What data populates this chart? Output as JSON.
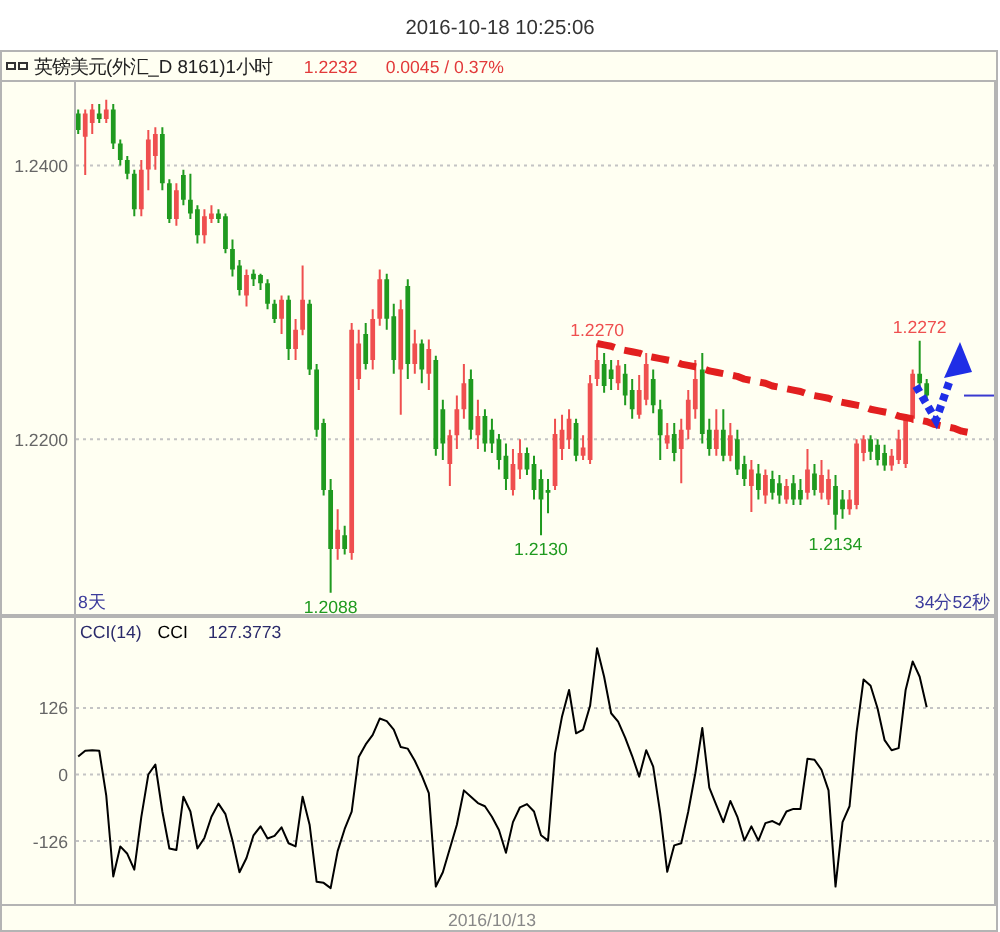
{
  "chart_data": [
    {
      "type": "candlestick",
      "title": "2016-10-18 10:25:06",
      "subtitle": "英镑美元(外汇_D 8161)1小时",
      "annotations": [
        "1.2232",
        "0.0045 / 0.37%",
        "8天",
        "34分52秒",
        {
          "text": "1.2270",
          "y": 1.227
        },
        {
          "text": "1.2130",
          "y": 1.213
        },
        {
          "text": "1.2088",
          "y": 1.2088
        },
        {
          "text": "1.2134",
          "y": 1.2134
        },
        {
          "text": "1.2272",
          "y": 1.2272
        }
      ],
      "categories": [
        null,
        null,
        null,
        null,
        null,
        null,
        null,
        null,
        null,
        null,
        null,
        null,
        null,
        null,
        null,
        null,
        null,
        null,
        null,
        null,
        null,
        null,
        null,
        null,
        null,
        null,
        null,
        null,
        null,
        null,
        null,
        null,
        null,
        null,
        null,
        null,
        null,
        null,
        null,
        null,
        null,
        null,
        null,
        null,
        null,
        null,
        null,
        null,
        null,
        null,
        null,
        null,
        null,
        null,
        null,
        null,
        null,
        null,
        null,
        null,
        null,
        null,
        null,
        null,
        null,
        null,
        null,
        null,
        null,
        null,
        null,
        null,
        null,
        null,
        null,
        null,
        null,
        null,
        null,
        null,
        null,
        null,
        null,
        null,
        null,
        null,
        null,
        null,
        null,
        null,
        null,
        null,
        null,
        null,
        null,
        null,
        null,
        null,
        null,
        null,
        null,
        null,
        null,
        null,
        null,
        null,
        null,
        null,
        null,
        null,
        null,
        null,
        null,
        null,
        null,
        null,
        null,
        null,
        null,
        null,
        null,
        null,
        null,
        null,
        null,
        null,
        null,
        null,
        null
      ],
      "ohlc": [
        [
          1.2438,
          1.2441,
          1.2423,
          1.2426
        ],
        [
          1.2421,
          1.2441,
          1.2393,
          1.2438
        ],
        [
          1.2431,
          1.2445,
          1.2423,
          1.2441
        ],
        [
          1.2438,
          1.2445,
          1.2431,
          1.2434
        ],
        [
          1.2434,
          1.2448,
          1.2431,
          1.2441
        ],
        [
          1.2441,
          1.2445,
          1.2412,
          1.2416
        ],
        [
          1.2416,
          1.2419,
          1.24,
          1.2404
        ],
        [
          1.2404,
          1.2407,
          1.239,
          1.2394
        ],
        [
          1.2394,
          1.2397,
          1.2363,
          1.2368
        ],
        [
          1.2368,
          1.2404,
          1.2363,
          1.2397
        ],
        [
          1.2397,
          1.2426,
          1.2382,
          1.2419
        ],
        [
          1.2407,
          1.2428,
          1.2397,
          1.2423
        ],
        [
          1.2423,
          1.2428,
          1.2382,
          1.2387
        ],
        [
          1.2387,
          1.239,
          1.2358,
          1.2361
        ],
        [
          1.2361,
          1.2387,
          1.2356,
          1.2382
        ],
        [
          1.2393,
          1.2397,
          1.2371,
          1.2375
        ],
        [
          1.2375,
          1.2394,
          1.2361,
          1.2365
        ],
        [
          1.2368,
          1.2371,
          1.2343,
          1.2349
        ],
        [
          1.2349,
          1.2368,
          1.2343,
          1.2363
        ],
        [
          1.2361,
          1.2371,
          1.2358,
          1.2365
        ],
        [
          1.2365,
          1.2368,
          1.2358,
          1.2361
        ],
        [
          1.2363,
          1.2365,
          1.2336,
          1.2339
        ],
        [
          1.2339,
          1.2346,
          1.2319,
          1.2324
        ],
        [
          1.2327,
          1.2331,
          1.2305,
          1.2309
        ],
        [
          1.2305,
          1.2324,
          1.2297,
          1.232
        ],
        [
          1.2321,
          1.2324,
          1.2312,
          1.2317
        ],
        [
          1.232,
          1.2321,
          1.2309,
          1.2314
        ],
        [
          1.2314,
          1.2317,
          1.2295,
          1.2299
        ],
        [
          1.2299,
          1.2302,
          1.2285,
          1.2288
        ],
        [
          1.2288,
          1.2305,
          1.2277,
          1.2302
        ],
        [
          1.2302,
          1.2305,
          1.2258,
          1.2266
        ],
        [
          1.2266,
          1.2288,
          1.2258,
          1.228
        ],
        [
          1.228,
          1.2327,
          1.2276,
          1.2302
        ],
        [
          1.2299,
          1.2302,
          1.2247,
          1.2251
        ],
        [
          1.2251,
          1.2255,
          1.2202,
          1.2207
        ],
        [
          1.2212,
          1.2215,
          1.2159,
          1.2163
        ],
        [
          1.2163,
          1.2171,
          1.2088,
          1.212
        ],
        [
          1.212,
          1.2149,
          1.2112,
          1.2134
        ],
        [
          1.213,
          1.2137,
          1.2116,
          1.212
        ],
        [
          1.2117,
          1.2285,
          1.2112,
          1.228
        ],
        [
          1.2244,
          1.228,
          1.2236,
          1.227
        ],
        [
          1.2277,
          1.2285,
          1.2251,
          1.2255
        ],
        [
          1.2258,
          1.2295,
          1.2251,
          1.2288
        ],
        [
          1.2288,
          1.2324,
          1.2283,
          1.2317
        ],
        [
          1.2317,
          1.2321,
          1.228,
          1.2288
        ],
        [
          1.229,
          1.2299,
          1.2248,
          1.2258
        ],
        [
          1.2251,
          1.2302,
          1.2218,
          1.2295
        ],
        [
          1.2312,
          1.2317,
          1.2244,
          1.2255
        ],
        [
          1.2255,
          1.228,
          1.2248,
          1.227
        ],
        [
          1.227,
          1.2273,
          1.2241,
          1.2251
        ],
        [
          1.2248,
          1.2273,
          1.2236,
          1.2266
        ],
        [
          1.2258,
          1.2261,
          1.2188,
          1.2193
        ],
        [
          1.2222,
          1.2229,
          1.2185,
          1.2197
        ],
        [
          1.2182,
          1.2207,
          1.2166,
          1.2203
        ],
        [
          1.2203,
          1.2232,
          1.2193,
          1.2222
        ],
        [
          1.2222,
          1.2255,
          1.2215,
          1.2241
        ],
        [
          1.2244,
          1.2251,
          1.22,
          1.2207
        ],
        [
          1.2203,
          1.2229,
          1.2193,
          1.2217
        ],
        [
          1.2217,
          1.2222,
          1.2191,
          1.2197
        ],
        [
          1.2207,
          1.2215,
          1.219,
          1.2197
        ],
        [
          1.22,
          1.2204,
          1.2178,
          1.2185
        ],
        [
          1.2188,
          1.2197,
          1.2163,
          1.2171
        ],
        [
          1.2163,
          1.2193,
          1.2159,
          1.2182
        ],
        [
          1.2178,
          1.22,
          1.2171,
          1.219
        ],
        [
          1.219,
          1.2194,
          1.2174,
          1.2178
        ],
        [
          1.2182,
          1.2188,
          1.2156,
          1.2163
        ],
        [
          1.2171,
          1.2178,
          1.213,
          1.2156
        ],
        [
          1.2163,
          1.2171,
          1.2146,
          1.2161
        ],
        [
          1.2166,
          1.2215,
          1.2163,
          1.2204
        ],
        [
          1.2193,
          1.2218,
          1.2185,
          1.2207
        ],
        [
          1.22,
          1.2222,
          1.2193,
          1.2215
        ],
        [
          1.2212,
          1.2215,
          1.2184,
          1.2188
        ],
        [
          1.2188,
          1.2203,
          1.2185,
          1.2194
        ],
        [
          1.2185,
          1.2247,
          1.2182,
          1.2241
        ],
        [
          1.2244,
          1.227,
          1.2239,
          1.2258
        ],
        [
          1.2255,
          1.2263,
          1.2234,
          1.2239
        ],
        [
          1.2251,
          1.2258,
          1.2236,
          1.2244
        ],
        [
          1.2241,
          1.2258,
          1.2236,
          1.2254
        ],
        [
          1.2248,
          1.2255,
          1.2225,
          1.2232
        ],
        [
          1.2236,
          1.2244,
          1.2215,
          1.2222
        ],
        [
          1.2218,
          1.2247,
          1.2215,
          1.2236
        ],
        [
          1.2229,
          1.2263,
          1.2225,
          1.2255
        ],
        [
          1.2244,
          1.2251,
          1.2219,
          1.2225
        ],
        [
          1.2222,
          1.2229,
          1.2185,
          1.2203
        ],
        [
          1.2197,
          1.2212,
          1.2193,
          1.2203
        ],
        [
          1.2204,
          1.2212,
          1.2184,
          1.219
        ],
        [
          1.2193,
          1.2215,
          1.2168,
          1.2207
        ],
        [
          1.2207,
          1.2236,
          1.22,
          1.2229
        ],
        [
          1.2222,
          1.2258,
          1.2215,
          1.2244
        ],
        [
          1.2251,
          1.2263,
          1.2197,
          1.2204
        ],
        [
          1.2207,
          1.2215,
          1.2188,
          1.2193
        ],
        [
          1.2193,
          1.2222,
          1.2188,
          1.2207
        ],
        [
          1.2207,
          1.2222,
          1.2184,
          1.2188
        ],
        [
          1.2188,
          1.2212,
          1.2184,
          1.2203
        ],
        [
          1.22,
          1.2207,
          1.2174,
          1.2178
        ],
        [
          1.2182,
          1.2188,
          1.2166,
          1.2171
        ],
        [
          1.2166,
          1.2185,
          1.2147,
          1.2178
        ],
        [
          1.2175,
          1.2182,
          1.2156,
          1.2163
        ],
        [
          1.2159,
          1.2178,
          1.2153,
          1.2174
        ],
        [
          1.2171,
          1.2177,
          1.2156,
          1.2161
        ],
        [
          1.2168,
          1.2174,
          1.2153,
          1.2159
        ],
        [
          1.2156,
          1.2171,
          1.2153,
          1.2166
        ],
        [
          1.2168,
          1.2174,
          1.2152,
          1.2156
        ],
        [
          1.2163,
          1.2171,
          1.2152,
          1.2156
        ],
        [
          1.2161,
          1.2193,
          1.2156,
          1.2178
        ],
        [
          1.2175,
          1.2182,
          1.2159,
          1.2163
        ],
        [
          1.2161,
          1.2185,
          1.2156,
          1.2174
        ],
        [
          1.2156,
          1.2178,
          1.2152,
          1.2171
        ],
        [
          1.2166,
          1.2174,
          1.2134,
          1.2145
        ],
        [
          1.2156,
          1.2163,
          1.2142,
          1.2149
        ],
        [
          1.2149,
          1.2163,
          1.2145,
          1.2156
        ],
        [
          1.2152,
          1.22,
          1.2149,
          1.2197
        ],
        [
          1.219,
          1.2203,
          1.2184,
          1.22
        ],
        [
          1.22,
          1.2203,
          1.2185,
          1.2191
        ],
        [
          1.2196,
          1.22,
          1.2181,
          1.2185
        ],
        [
          1.219,
          1.2196,
          1.2177,
          1.2181
        ],
        [
          1.2181,
          1.2193,
          1.2177,
          1.2188
        ],
        [
          1.2185,
          1.2207,
          1.2182,
          1.22
        ],
        [
          1.2182,
          1.2218,
          1.2179,
          1.2215
        ],
        [
          1.2215,
          1.2251,
          1.2212,
          1.2248
        ],
        [
          1.2248,
          1.2272,
          1.2238,
          1.2241
        ],
        [
          1.2241,
          1.2244,
          1.2229,
          1.2232
        ],
        null,
        null,
        null,
        null,
        null,
        null,
        null
      ],
      "colors": [
        "#1f9a1f",
        "#ef4f4f",
        "#ef4f4f",
        "#1f9a1f",
        "#ef4f4f",
        "#1f9a1f",
        "#1f9a1f",
        "#1f9a1f",
        "#1f9a1f",
        "#ef4f4f",
        "#ef4f4f",
        "#ef4f4f",
        "#1f9a1f",
        "#1f9a1f",
        "#ef4f4f",
        "#1f9a1f",
        "#1f9a1f",
        "#1f9a1f",
        "#ef4f4f",
        "#ef4f4f",
        "#1f9a1f",
        "#1f9a1f",
        "#1f9a1f",
        "#1f9a1f",
        "#ef4f4f",
        "#1f9a1f",
        "#1f9a1f",
        "#1f9a1f",
        "#1f9a1f",
        "#ef4f4f",
        "#1f9a1f",
        "#ef4f4f",
        "#ef4f4f",
        "#1f9a1f",
        "#1f9a1f",
        "#1f9a1f",
        "#1f9a1f",
        "#ef4f4f",
        "#1f9a1f",
        "#ef4f4f",
        "#ef4f4f",
        "#1f9a1f",
        "#ef4f4f",
        "#ef4f4f",
        "#1f9a1f",
        "#1f9a1f",
        "#ef4f4f",
        "#1f9a1f",
        "#ef4f4f",
        "#1f9a1f",
        "#ef4f4f",
        "#1f9a1f",
        "#1f9a1f",
        "#ef4f4f",
        "#ef4f4f",
        "#ef4f4f",
        "#1f9a1f",
        "#ef4f4f",
        "#1f9a1f",
        "#1f9a1f",
        "#1f9a1f",
        "#1f9a1f",
        "#ef4f4f",
        "#ef4f4f",
        "#1f9a1f",
        "#1f9a1f",
        "#1f9a1f",
        "#1f9a1f",
        "#ef4f4f",
        "#ef4f4f",
        "#ef4f4f",
        "#1f9a1f",
        "#ef4f4f",
        "#ef4f4f",
        "#ef4f4f",
        "#1f9a1f",
        "#1f9a1f",
        "#ef4f4f",
        "#1f9a1f",
        "#1f9a1f",
        "#ef4f4f",
        "#ef4f4f",
        "#1f9a1f",
        "#1f9a1f",
        "#ef4f4f",
        "#1f9a1f",
        "#ef4f4f",
        "#ef4f4f",
        "#ef4f4f",
        "#1f9a1f",
        "#1f9a1f",
        "#ef4f4f",
        "#1f9a1f",
        "#ef4f4f",
        "#1f9a1f",
        "#1f9a1f",
        "#ef4f4f",
        "#1f9a1f",
        "#ef4f4f",
        "#1f9a1f",
        "#1f9a1f",
        "#ef4f4f",
        "#1f9a1f",
        "#1f9a1f",
        "#ef4f4f",
        "#1f9a1f",
        "#ef4f4f",
        "#ef4f4f",
        "#1f9a1f",
        "#1f9a1f",
        "#ef4f4f",
        "#ef4f4f",
        "#ef4f4f",
        "#1f9a1f",
        "#1f9a1f",
        "#1f9a1f",
        "#ef4f4f",
        "#ef4f4f",
        "#ef4f4f",
        "#ef4f4f",
        "#1f9a1f",
        "#1f9a1f",
        null,
        null,
        null,
        null,
        null,
        null,
        null
      ],
      "series": [
        {
          "type": "line",
          "color": "#e21f1f",
          "line_style": "dashed",
          "values": [
            null,
            null,
            null,
            null,
            null,
            null,
            null,
            null,
            null,
            null,
            null,
            null,
            null,
            null,
            null,
            null,
            null,
            null,
            null,
            null,
            null,
            null,
            null,
            null,
            null,
            null,
            null,
            null,
            null,
            null,
            null,
            null,
            null,
            null,
            null,
            null,
            null,
            null,
            null,
            null,
            null,
            null,
            null,
            null,
            null,
            null,
            null,
            null,
            null,
            null,
            null,
            null,
            null,
            null,
            null,
            null,
            null,
            null,
            null,
            null,
            null,
            null,
            null,
            null,
            null,
            null,
            null,
            null,
            null,
            null,
            null,
            null,
            null,
            null,
            1.227,
            1.2269,
            1.2268,
            1.2266,
            1.2265,
            1.2264,
            1.2263,
            1.2261,
            1.226,
            1.2259,
            1.2258,
            1.2257,
            1.2255,
            1.2254,
            1.2253,
            1.2252,
            1.225,
            1.2249,
            1.2248,
            1.2247,
            1.2246,
            1.2244,
            1.2243,
            1.2242,
            1.2241,
            1.2239,
            1.2238,
            1.2237,
            1.2236,
            1.2235,
            1.2233,
            1.2232,
            1.2231,
            1.223,
            1.2228,
            1.2227,
            1.2226,
            1.2225,
            1.2224,
            1.2222,
            1.2221,
            1.222,
            1.2219,
            1.2217,
            1.2216,
            1.2215,
            1.2214,
            1.2213,
            1.2211,
            1.221,
            1.2209,
            1.2208,
            1.2206,
            1.2205,
            1.2204
          ]
        }
      ],
      "ylim": [
        1.2071,
        1.2461
      ],
      "yticks": [
        {
          "value": 1.22,
          "label": "1.2200"
        },
        {
          "value": 1.24,
          "label": "1.2400"
        }
      ],
      "grid": "y",
      "tick_labels": "y"
    },
    {
      "type": "line",
      "title": "CCI(14)",
      "annotations": [
        "127.3773"
      ],
      "categories": [
        null,
        null,
        null,
        null,
        null,
        null,
        null,
        null,
        null,
        null,
        null,
        null,
        null,
        null,
        null,
        null,
        null,
        null,
        null,
        null,
        null,
        null,
        null,
        null,
        null,
        null,
        null,
        null,
        null,
        null,
        null,
        null,
        null,
        null,
        null,
        null,
        null,
        null,
        null,
        null,
        null,
        null,
        null,
        null,
        null,
        null,
        null,
        null,
        null,
        null,
        null,
        null,
        null,
        null,
        null,
        null,
        null,
        null,
        null,
        "2016/10/13",
        null,
        null,
        null,
        null,
        null,
        null,
        null,
        null,
        null,
        null,
        null,
        null,
        null,
        null,
        null,
        null,
        null,
        null,
        null,
        null,
        null,
        null,
        null,
        null,
        null,
        null,
        null,
        null,
        null,
        null,
        null,
        null,
        null,
        null,
        null,
        null,
        null,
        null,
        null,
        null,
        null,
        null,
        null,
        null,
        null,
        null,
        null,
        null,
        null,
        null,
        null,
        null,
        null,
        null,
        null,
        null,
        null,
        null,
        null,
        null,
        null,
        null,
        null,
        null,
        null,
        null,
        null,
        null,
        null
      ],
      "series": [
        {
          "name": "CCI",
          "color": "#000000",
          "values": [
            34,
            45,
            46,
            45,
            -40,
            -193,
            -136,
            -150,
            -180,
            -80,
            0,
            19,
            -70,
            -140,
            -143,
            -42,
            -70,
            -140,
            -120,
            -80,
            -55,
            -75,
            -125,
            -185,
            -158,
            -115,
            -98,
            -121,
            -116,
            -100,
            -130,
            -136,
            -42,
            -95,
            -203,
            -205,
            -215,
            -145,
            -103,
            -70,
            33,
            57,
            75,
            106,
            101,
            85,
            52,
            49,
            26,
            -2,
            -35,
            -212,
            -185,
            -140,
            -95,
            -30,
            -42,
            -54,
            -60,
            -80,
            -105,
            -148,
            -90,
            -62,
            -56,
            -70,
            -115,
            -125,
            40,
            110,
            160,
            78,
            85,
            130,
            239,
            185,
            116,
            100,
            70,
            35,
            -4,
            46,
            15,
            -73,
            -184,
            -134,
            -130,
            -70,
            2,
            88,
            -25,
            -58,
            -90,
            -50,
            -80,
            -125,
            -98,
            -125,
            -92,
            -88,
            -95,
            -70,
            -65,
            -65,
            30,
            28,
            9,
            -30,
            -212,
            -90,
            -60,
            80,
            180,
            168,
            125,
            65,
            46,
            50,
            160,
            214,
            185,
            127.3773,
            null,
            null,
            null,
            null,
            null,
            null,
            null
          ]
        }
      ],
      "ylim": [
        -245,
        300
      ],
      "yticks": [
        -126,
        0,
        126
      ],
      "grid": "y"
    }
  ]
}
